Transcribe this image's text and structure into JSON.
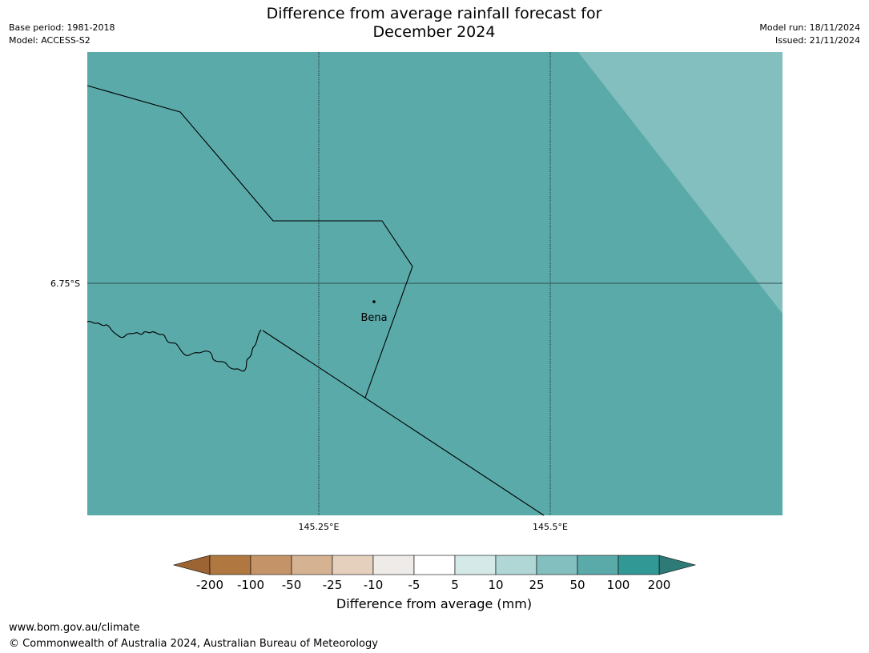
{
  "title_line1": "Difference from average rainfall forecast for",
  "title_line2": "December 2024",
  "meta": {
    "base_period": "Base period: 1981-2018",
    "model": "Model: ACCESS-S2",
    "model_run": "Model run: 18/11/2024",
    "issued": "Issued: 21/11/2024"
  },
  "map": {
    "lat_label": "6.75°S",
    "lon_labels": [
      "145.25°E",
      "145.5°E"
    ],
    "place_name": "Bena",
    "colors": {
      "base_fill": "#5aaaaa",
      "light_fill": "#84bfbf"
    },
    "regions": [
      {
        "category": "50 to 100 mm",
        "color": "#5aaaaa"
      },
      {
        "category": "25 to 50 mm",
        "color": "#84bfbf"
      }
    ]
  },
  "colorbar": {
    "title": "Difference from average (mm)",
    "ticks": [
      "-200",
      "-100",
      "-50",
      "-25",
      "-10",
      "-5",
      "5",
      "10",
      "25",
      "50",
      "100",
      "200"
    ],
    "under_color": "#9c6432",
    "over_color": "#2e7a77",
    "colors": [
      "#b07840",
      "#c49468",
      "#d4b292",
      "#e4d0bd",
      "#efebe8",
      "#ffffff",
      "#d6e9e9",
      "#b0d6d6",
      "#84bfbf",
      "#5aaaaa",
      "#329896"
    ]
  },
  "footer": {
    "url": "www.bom.gov.au/climate",
    "copyright": "© Commonwealth of Australia 2024, Australian Bureau of Meteorology"
  }
}
